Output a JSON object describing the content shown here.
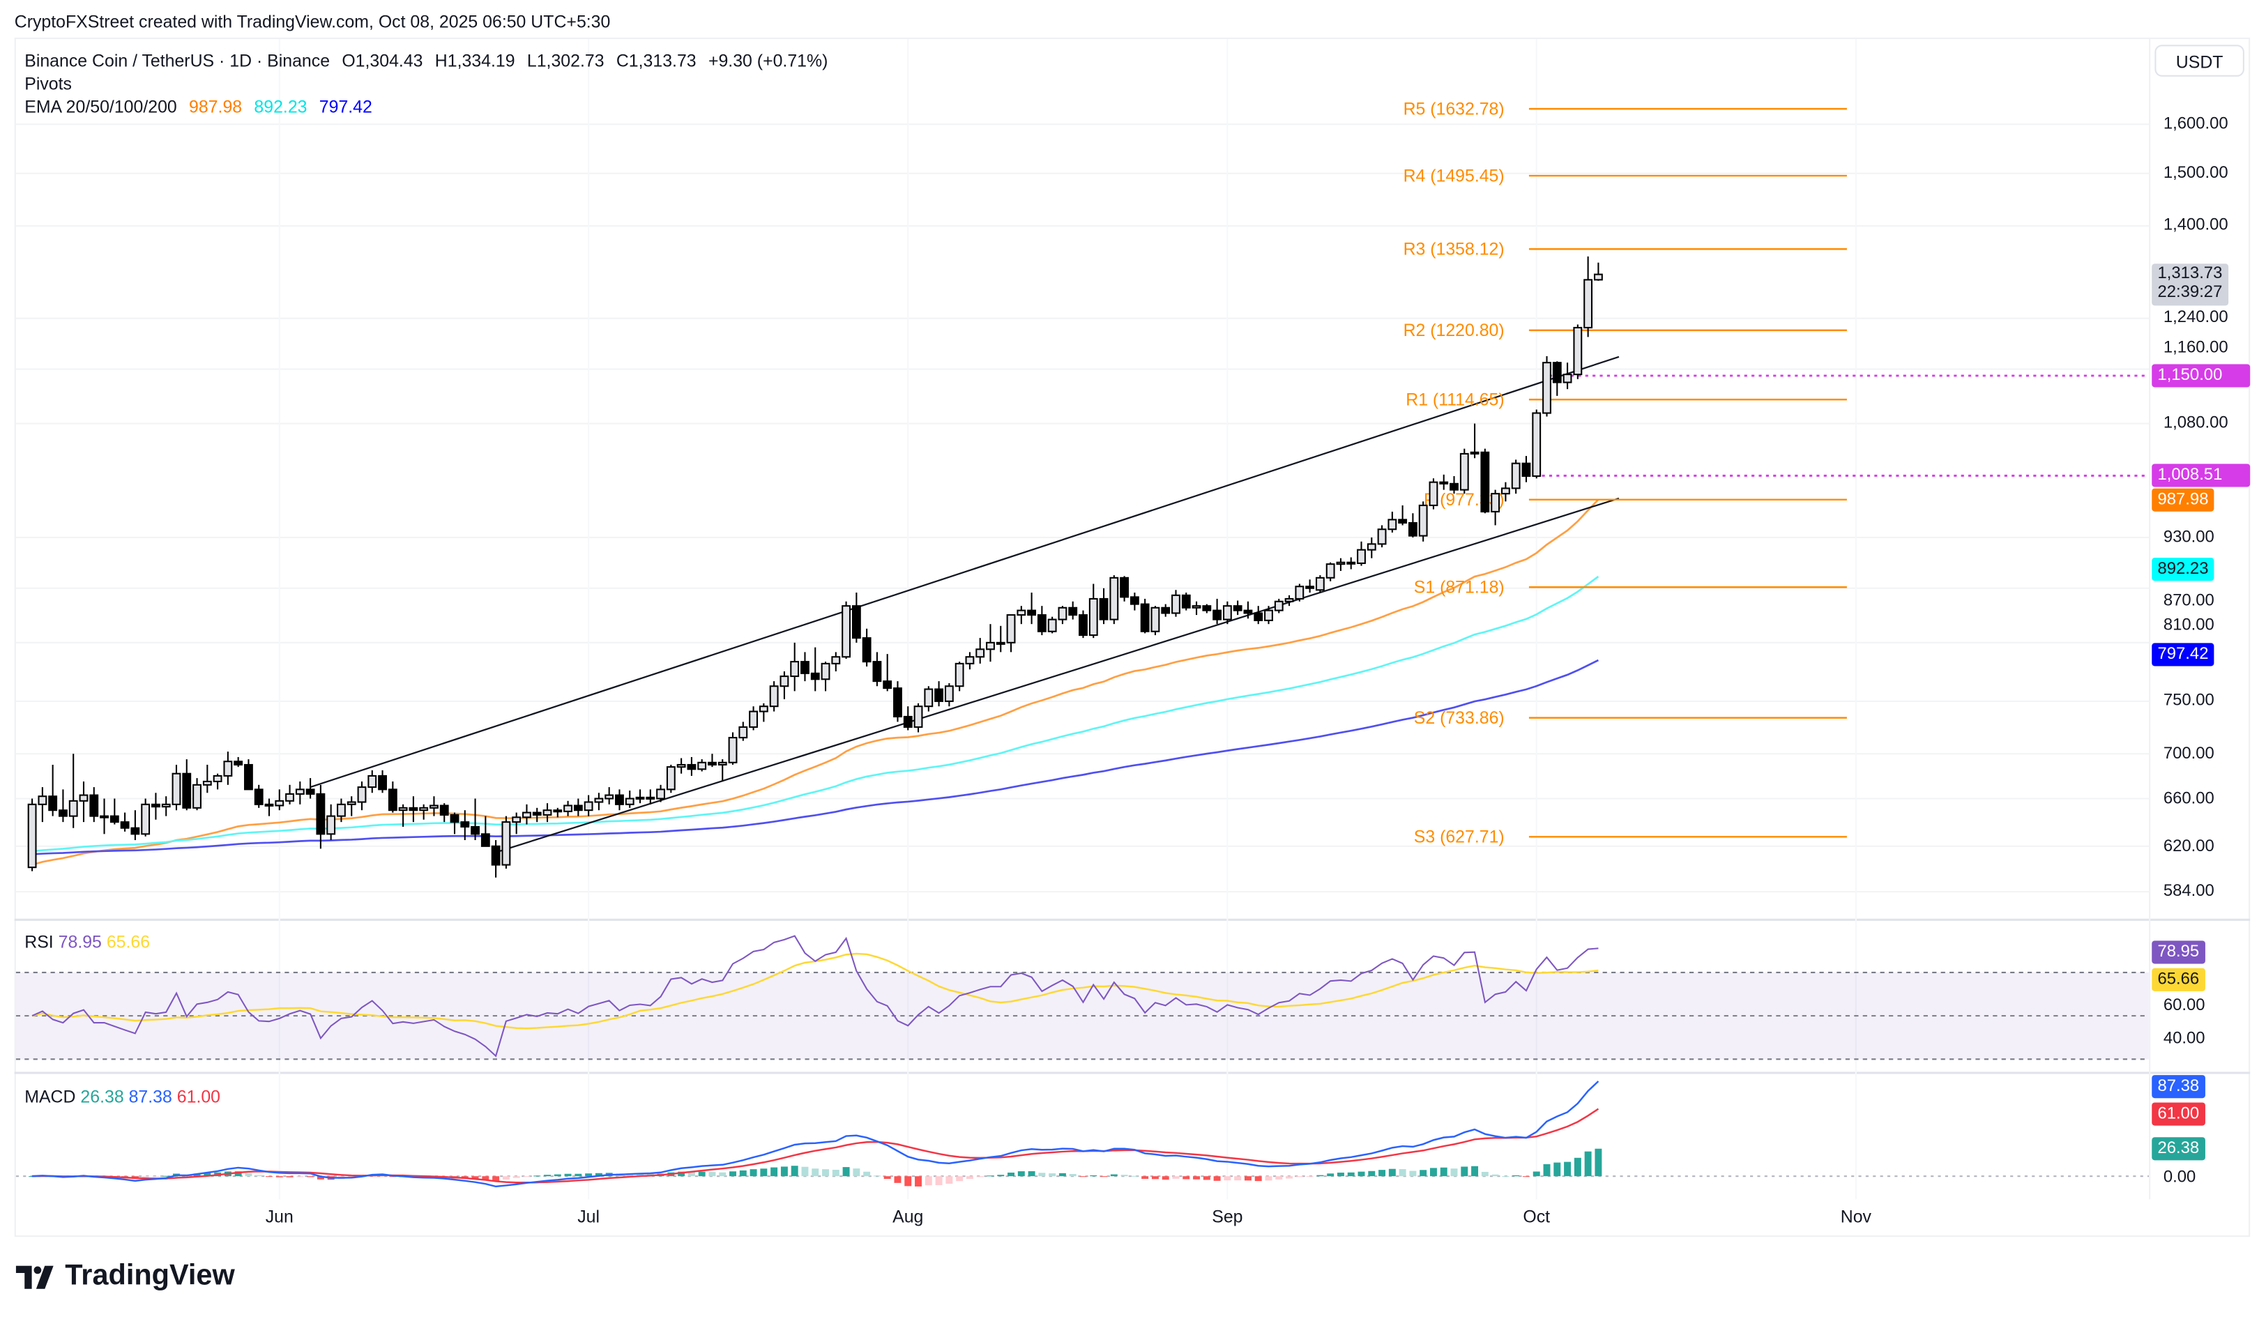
{
  "attribution": "CryptoFXStreet created with TradingView.com, Oct 08, 2025 06:50 UTC+5:30",
  "legend": {
    "symbol": "Binance Coin / TetherUS · 1D · Binance",
    "open": "O1,304.43",
    "high": "H1,334.19",
    "low": "L1,302.73",
    "close": "C1,313.73",
    "change": "+9.30 (+0.71%)",
    "pivots": "Pivots",
    "ema_label": "EMA 20/50/100/200",
    "ema_values": [
      "987.98",
      "892.23",
      "797.42"
    ]
  },
  "currency": "USDT",
  "price_axis": {
    "ticks": [
      "1,600.00",
      "1,500.00",
      "1,400.00",
      "1,240.00",
      "1,160.00",
      "1,080.00",
      "930.00",
      "870.00",
      "810.00",
      "750.00",
      "700.00",
      "660.00",
      "620.00",
      "584.00"
    ],
    "scale": "log"
  },
  "badges": {
    "last_price": "1,313.73",
    "countdown": "22:39:27",
    "line_1150": "1,150.00",
    "line_1008": "1,008.51",
    "ema_orange": "987.98",
    "ema_cyan": "892.23",
    "ema_blue": "797.42"
  },
  "colors": {
    "ema_orange": "#ff9f43",
    "ema_cyan": "#5ff5f5",
    "ema_blue": "#5050f0",
    "pivot": "#ff8c00",
    "magenta": "#d63ce8",
    "rsi": "#7e57c2",
    "rsi_ma": "#fdd835",
    "macd": "#2962ff",
    "signal": "#f23645",
    "hist_up": "#26a69a",
    "hist_up_light": "#b2dfdb",
    "hist_down": "#ff5252",
    "hist_down_light": "#ffcdd2"
  },
  "rsi": {
    "label": "RSI",
    "value": "78.95",
    "ma_value": "65.66",
    "ticks": [
      "60.00",
      "40.00"
    ],
    "levels": [
      70,
      50,
      30
    ]
  },
  "macd": {
    "label": "MACD",
    "hist_value": "26.38",
    "macd_value": "87.38",
    "signal_value": "61.00",
    "zero_tick": "0.00"
  },
  "time_axis": [
    "Jun",
    "Jul",
    "Aug",
    "Sep",
    "Oct",
    "Nov"
  ],
  "logo": "TradingView",
  "chart_data": {
    "type": "candlestick",
    "interval": "1D",
    "yscale": "log",
    "ylim": [
      570,
      1680
    ],
    "grid": true,
    "pivots": [
      {
        "label": "R5 (1632.78)",
        "value": 1632.78
      },
      {
        "label": "R4 (1495.45)",
        "value": 1495.45
      },
      {
        "label": "R3 (1358.12)",
        "value": 1358.12
      },
      {
        "label": "R2 (1220.80)",
        "value": 1220.8
      },
      {
        "label": "R1 (1114.65)",
        "value": 1114.65
      },
      {
        "label": "P (977.33)",
        "value": 977.33
      },
      {
        "label": "S1 (871.18)",
        "value": 871.18
      },
      {
        "label": "S2 (733.86)",
        "value": 733.86
      },
      {
        "label": "S3 (627.71)",
        "value": 627.71
      }
    ],
    "horizontal_lines": [
      1150.0,
      1008.51
    ],
    "ohlc": [
      [
        603,
        660,
        600,
        655
      ],
      [
        655,
        670,
        640,
        662
      ],
      [
        662,
        690,
        645,
        650
      ],
      [
        650,
        668,
        640,
        645
      ],
      [
        645,
        700,
        635,
        658
      ],
      [
        658,
        675,
        640,
        663
      ],
      [
        663,
        670,
        640,
        645
      ],
      [
        645,
        660,
        630,
        645
      ],
      [
        645,
        660,
        638,
        640
      ],
      [
        640,
        648,
        632,
        635
      ],
      [
        635,
        650,
        625,
        630
      ],
      [
        630,
        660,
        628,
        655
      ],
      [
        655,
        665,
        642,
        653
      ],
      [
        653,
        662,
        645,
        655
      ],
      [
        655,
        690,
        650,
        682
      ],
      [
        682,
        695,
        650,
        652
      ],
      [
        652,
        678,
        650,
        672
      ],
      [
        672,
        690,
        665,
        675
      ],
      [
        675,
        682,
        668,
        680
      ],
      [
        680,
        702,
        672,
        693
      ],
      [
        693,
        697,
        688,
        690
      ],
      [
        690,
        695,
        668,
        668
      ],
      [
        668,
        672,
        652,
        655
      ],
      [
        655,
        660,
        645,
        654
      ],
      [
        654,
        668,
        650,
        658
      ],
      [
        658,
        672,
        655,
        664
      ],
      [
        664,
        675,
        655,
        668
      ],
      [
        668,
        678,
        660,
        664
      ],
      [
        664,
        672,
        618,
        630
      ],
      [
        630,
        655,
        625,
        645
      ],
      [
        645,
        660,
        640,
        655
      ],
      [
        655,
        662,
        645,
        657
      ],
      [
        657,
        675,
        650,
        670
      ],
      [
        670,
        685,
        665,
        680
      ],
      [
        680,
        685,
        665,
        668
      ],
      [
        668,
        675,
        648,
        650
      ],
      [
        650,
        655,
        636,
        652
      ],
      [
        652,
        662,
        640,
        650
      ],
      [
        650,
        655,
        642,
        652
      ],
      [
        652,
        662,
        645,
        654
      ],
      [
        654,
        656,
        640,
        646
      ],
      [
        646,
        648,
        630,
        640
      ],
      [
        640,
        650,
        625,
        636
      ],
      [
        636,
        660,
        625,
        630
      ],
      [
        630,
        645,
        620,
        620
      ],
      [
        620,
        625,
        595,
        605
      ],
      [
        605,
        645,
        602,
        640
      ],
      [
        640,
        648,
        630,
        644
      ],
      [
        644,
        655,
        638,
        648
      ],
      [
        648,
        652,
        640,
        646
      ],
      [
        646,
        656,
        640,
        650
      ],
      [
        650,
        652,
        644,
        649
      ],
      [
        649,
        658,
        645,
        654
      ],
      [
        654,
        660,
        645,
        650
      ],
      [
        650,
        663,
        645,
        657
      ],
      [
        657,
        665,
        650,
        660
      ],
      [
        660,
        670,
        655,
        663
      ],
      [
        663,
        668,
        650,
        655
      ],
      [
        655,
        667,
        652,
        660
      ],
      [
        660,
        668,
        656,
        661
      ],
      [
        661,
        668,
        655,
        660
      ],
      [
        660,
        672,
        657,
        668
      ],
      [
        668,
        690,
        665,
        688
      ],
      [
        688,
        696,
        682,
        690
      ],
      [
        690,
        697,
        680,
        686
      ],
      [
        686,
        695,
        684,
        692
      ],
      [
        692,
        700,
        688,
        690
      ],
      [
        690,
        695,
        675,
        692
      ],
      [
        692,
        720,
        690,
        715
      ],
      [
        715,
        730,
        712,
        725
      ],
      [
        725,
        745,
        722,
        740
      ],
      [
        740,
        748,
        730,
        745
      ],
      [
        745,
        770,
        740,
        765
      ],
      [
        765,
        780,
        752,
        775
      ],
      [
        775,
        810,
        760,
        790
      ],
      [
        790,
        800,
        770,
        778
      ],
      [
        778,
        805,
        760,
        772
      ],
      [
        772,
        790,
        760,
        788
      ],
      [
        788,
        800,
        780,
        795
      ],
      [
        795,
        855,
        793,
        850
      ],
      [
        850,
        865,
        810,
        815
      ],
      [
        815,
        825,
        785,
        790
      ],
      [
        790,
        800,
        765,
        770
      ],
      [
        770,
        798,
        760,
        763
      ],
      [
        763,
        770,
        730,
        735
      ],
      [
        735,
        745,
        722,
        725
      ],
      [
        725,
        748,
        720,
        745
      ],
      [
        745,
        765,
        740,
        762
      ],
      [
        762,
        770,
        745,
        750
      ],
      [
        750,
        768,
        745,
        765
      ],
      [
        765,
        790,
        760,
        788
      ],
      [
        788,
        800,
        782,
        795
      ],
      [
        795,
        815,
        788,
        803
      ],
      [
        803,
        830,
        790,
        810
      ],
      [
        810,
        828,
        800,
        810
      ],
      [
        810,
        840,
        800,
        840
      ],
      [
        840,
        850,
        830,
        845
      ],
      [
        845,
        865,
        830,
        840
      ],
      [
        840,
        850,
        818,
        822
      ],
      [
        822,
        838,
        820,
        835
      ],
      [
        835,
        850,
        830,
        848
      ],
      [
        848,
        855,
        835,
        840
      ],
      [
        840,
        845,
        815,
        818
      ],
      [
        818,
        875,
        815,
        858
      ],
      [
        858,
        870,
        830,
        835
      ],
      [
        835,
        885,
        830,
        882
      ],
      [
        882,
        884,
        855,
        860
      ],
      [
        860,
        865,
        845,
        852
      ],
      [
        852,
        858,
        820,
        822
      ],
      [
        822,
        850,
        818,
        848
      ],
      [
        848,
        852,
        838,
        842
      ],
      [
        842,
        868,
        838,
        862
      ],
      [
        862,
        865,
        845,
        848
      ],
      [
        848,
        855,
        840,
        850
      ],
      [
        850,
        852,
        842,
        845
      ],
      [
        845,
        858,
        830,
        835
      ],
      [
        835,
        855,
        830,
        850
      ],
      [
        850,
        856,
        840,
        845
      ],
      [
        845,
        855,
        836,
        842
      ],
      [
        842,
        850,
        830,
        834
      ],
      [
        834,
        850,
        830,
        845
      ],
      [
        845,
        858,
        842,
        855
      ],
      [
        855,
        862,
        850,
        858
      ],
      [
        858,
        875,
        855,
        872
      ],
      [
        872,
        880,
        865,
        870
      ],
      [
        868,
        885,
        865,
        882
      ],
      [
        882,
        900,
        878,
        898
      ],
      [
        898,
        905,
        890,
        900
      ],
      [
        900,
        906,
        892,
        899
      ],
      [
        899,
        925,
        896,
        915
      ],
      [
        915,
        930,
        905,
        922
      ],
      [
        922,
        945,
        918,
        940
      ],
      [
        940,
        962,
        936,
        952
      ],
      [
        952,
        970,
        945,
        948
      ],
      [
        948,
        960,
        930,
        932
      ],
      [
        932,
        975,
        925,
        970
      ],
      [
        970,
        1005,
        965,
        1000
      ],
      [
        1000,
        1010,
        990,
        998
      ],
      [
        998,
        1008,
        985,
        990
      ],
      [
        990,
        1045,
        985,
        1038
      ],
      [
        1038,
        1080,
        1032,
        1040
      ],
      [
        1040,
        1045,
        960,
        962
      ],
      [
        962,
        990,
        945,
        985
      ],
      [
        985,
        1000,
        975,
        992
      ],
      [
        992,
        1030,
        985,
        1025
      ],
      [
        1025,
        1035,
        1000,
        1008
      ],
      [
        1008,
        1100,
        1005,
        1095
      ],
      [
        1095,
        1180,
        1090,
        1170
      ],
      [
        1170,
        1172,
        1120,
        1140
      ],
      [
        1140,
        1170,
        1130,
        1152
      ],
      [
        1152,
        1230,
        1145,
        1225
      ],
      [
        1225,
        1345,
        1210,
        1304.43
      ],
      [
        1304.43,
        1334.19,
        1302.73,
        1313.73
      ]
    ]
  }
}
